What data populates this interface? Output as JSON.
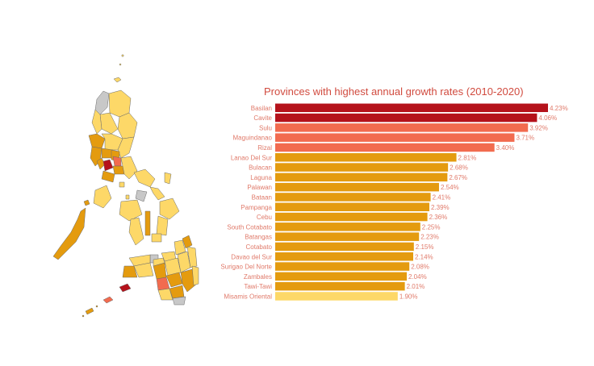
{
  "chart_data": {
    "type": "bar",
    "orientation": "horizontal",
    "title": "Provinces with highest annual growth rates (2010-2020)",
    "categories": [
      "Basilan",
      "Cavite",
      "Sulu",
      "Maguindanao",
      "Rizal",
      "Lanao Del Sur",
      "Bulacan",
      "Laguna",
      "Palawan",
      "Bataan",
      "Pampanga",
      "Cebu",
      "South Cotabato",
      "Batangas",
      "Cotabato",
      "Davao del Sur",
      "Surigao Del Norte",
      "Zambales",
      "Tawi-Tawi",
      "Misamis Oriental"
    ],
    "values": [
      4.23,
      4.06,
      3.92,
      3.71,
      3.4,
      2.81,
      2.68,
      2.67,
      2.54,
      2.41,
      2.39,
      2.36,
      2.25,
      2.23,
      2.15,
      2.14,
      2.08,
      2.04,
      2.01,
      1.9
    ],
    "value_labels": [
      "4.23%",
      "4.06%",
      "3.92%",
      "3.71%",
      "3.40%",
      "2.81%",
      "2.68%",
      "2.67%",
      "2.54%",
      "2.41%",
      "2.39%",
      "2.36%",
      "2.25%",
      "2.23%",
      "2.15%",
      "2.14%",
      "2.08%",
      "2.04%",
      "2.01%",
      "1.90%"
    ],
    "bar_colors": [
      "#b5121b",
      "#b5121b",
      "#f26b4f",
      "#f26b4f",
      "#f26b4f",
      "#e49b0f",
      "#e49b0f",
      "#e49b0f",
      "#e49b0f",
      "#e49b0f",
      "#e49b0f",
      "#e49b0f",
      "#e49b0f",
      "#e49b0f",
      "#e49b0f",
      "#e49b0f",
      "#e49b0f",
      "#e49b0f",
      "#e49b0f",
      "#fdd868"
    ],
    "xlim": [
      0,
      4.23
    ],
    "grid": false
  },
  "colors": {
    "title": "#d14b3f",
    "label": "#e07a6a",
    "map_light": "#fdd868",
    "map_mid": "#e49b0f",
    "map_gray": "#c8c8c8",
    "map_red": "#b5121b",
    "map_salmon": "#f26b4f"
  }
}
